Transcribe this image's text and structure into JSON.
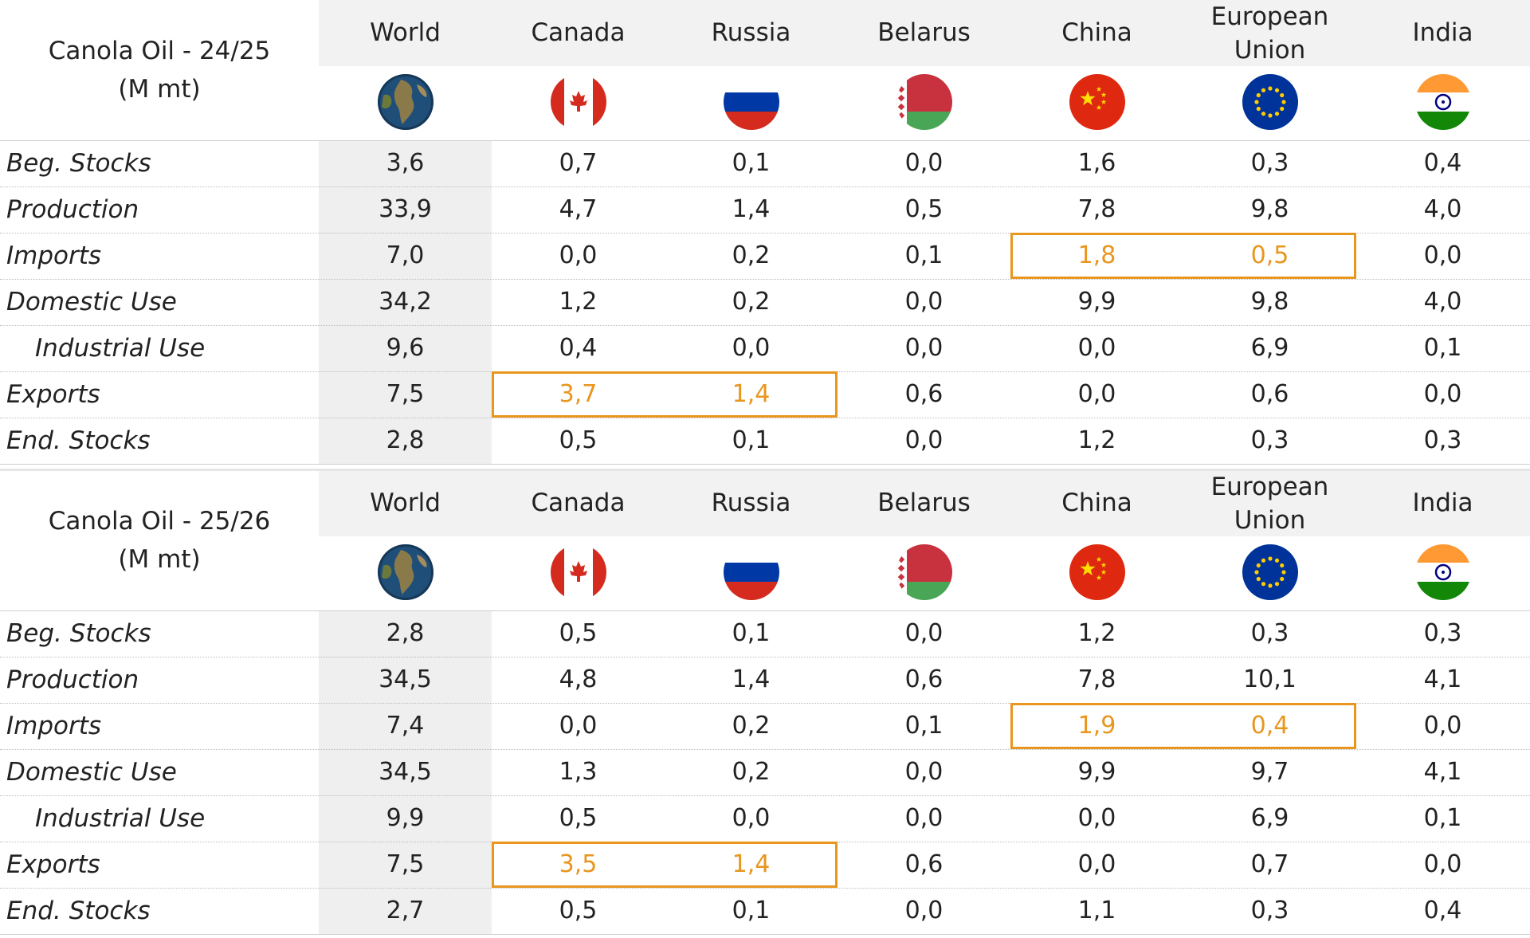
{
  "columns": [
    "World",
    "Canada",
    "Russia",
    "Belarus",
    "China",
    "European Union",
    "India"
  ],
  "flags": [
    "globe-icon",
    "canada-flag-icon",
    "russia-flag-icon",
    "belarus-flag-icon",
    "china-flag-icon",
    "eu-flag-icon",
    "india-flag-icon"
  ],
  "colors": {
    "highlight": "#e8961e",
    "header_bg": "#f2f2f2",
    "world_col_bg": "#efefef"
  },
  "tables": [
    {
      "title": "Canola Oil - 24/25",
      "unit": "(M mt)",
      "rows": [
        {
          "label": "Beg. Stocks",
          "values": [
            "3,6",
            "0,7",
            "0,1",
            "0,0",
            "1,6",
            "0,3",
            "0,4"
          ]
        },
        {
          "label": "Production",
          "values": [
            "33,9",
            "4,7",
            "1,4",
            "0,5",
            "7,8",
            "9,8",
            "4,0"
          ]
        },
        {
          "label": "Imports",
          "values": [
            "7,0",
            "0,0",
            "0,2",
            "0,1",
            "1,8",
            "0,5",
            "0,0"
          ]
        },
        {
          "label": "Domestic Use",
          "values": [
            "34,2",
            "1,2",
            "0,2",
            "0,0",
            "9,9",
            "9,8",
            "4,0"
          ]
        },
        {
          "label": "Industrial Use",
          "values": [
            "9,6",
            "0,4",
            "0,0",
            "0,0",
            "0,0",
            "6,9",
            "0,1"
          ]
        },
        {
          "label": "Exports",
          "values": [
            "7,5",
            "3,7",
            "1,4",
            "0,6",
            "0,0",
            "0,6",
            "0,0"
          ]
        },
        {
          "label": "End. Stocks",
          "values": [
            "2,8",
            "0,5",
            "0,1",
            "0,0",
            "1,2",
            "0,3",
            "0,3"
          ]
        }
      ]
    },
    {
      "title": "Canola Oil - 25/26",
      "unit": "(M mt)",
      "rows": [
        {
          "label": "Beg. Stocks",
          "values": [
            "2,8",
            "0,5",
            "0,1",
            "0,0",
            "1,2",
            "0,3",
            "0,3"
          ]
        },
        {
          "label": "Production",
          "values": [
            "34,5",
            "4,8",
            "1,4",
            "0,6",
            "7,8",
            "10,1",
            "4,1"
          ]
        },
        {
          "label": "Imports",
          "values": [
            "7,4",
            "0,0",
            "0,2",
            "0,1",
            "1,9",
            "0,4",
            "0,0"
          ]
        },
        {
          "label": "Domestic Use",
          "values": [
            "34,5",
            "1,3",
            "0,2",
            "0,0",
            "9,9",
            "9,7",
            "4,1"
          ]
        },
        {
          "label": "Industrial Use",
          "values": [
            "9,9",
            "0,5",
            "0,0",
            "0,0",
            "0,0",
            "6,9",
            "0,1"
          ]
        },
        {
          "label": "Exports",
          "values": [
            "7,5",
            "3,5",
            "1,4",
            "0,6",
            "0,0",
            "0,7",
            "0,0"
          ]
        },
        {
          "label": "End. Stocks",
          "values": [
            "2,7",
            "0,5",
            "0,1",
            "0,0",
            "1,1",
            "0,3",
            "0,4"
          ]
        }
      ]
    }
  ],
  "highlights": [
    {
      "row": "Imports",
      "columns": [
        "China",
        "European Union"
      ]
    },
    {
      "row": "Exports",
      "columns": [
        "Canada",
        "Russia"
      ]
    }
  ],
  "chart_data": {
    "type": "table",
    "columns": [
      "World",
      "Canada",
      "Russia",
      "Belarus",
      "China",
      "European Union",
      "India"
    ],
    "tables": [
      {
        "title": "Canola Oil - 24/25 (M mt)",
        "rows": {
          "Beg. Stocks": [
            3.6,
            0.7,
            0.1,
            0.0,
            1.6,
            0.3,
            0.4
          ],
          "Production": [
            33.9,
            4.7,
            1.4,
            0.5,
            7.8,
            9.8,
            4.0
          ],
          "Imports": [
            7.0,
            0.0,
            0.2,
            0.1,
            1.8,
            0.5,
            0.0
          ],
          "Domestic Use": [
            34.2,
            1.2,
            0.2,
            0.0,
            9.9,
            9.8,
            4.0
          ],
          "Industrial Use": [
            9.6,
            0.4,
            0.0,
            0.0,
            0.0,
            6.9,
            0.1
          ],
          "Exports": [
            7.5,
            3.7,
            1.4,
            0.6,
            0.0,
            0.6,
            0.0
          ],
          "End. Stocks": [
            2.8,
            0.5,
            0.1,
            0.0,
            1.2,
            0.3,
            0.3
          ]
        }
      },
      {
        "title": "Canola Oil - 25/26 (M mt)",
        "rows": {
          "Beg. Stocks": [
            2.8,
            0.5,
            0.1,
            0.0,
            1.2,
            0.3,
            0.3
          ],
          "Production": [
            34.5,
            4.8,
            1.4,
            0.6,
            7.8,
            10.1,
            4.1
          ],
          "Imports": [
            7.4,
            0.0,
            0.2,
            0.1,
            1.9,
            0.4,
            0.0
          ],
          "Domestic Use": [
            34.5,
            1.3,
            0.2,
            0.0,
            9.9,
            9.7,
            4.1
          ],
          "Industrial Use": [
            9.9,
            0.5,
            0.0,
            0.0,
            0.0,
            6.9,
            0.1
          ],
          "Exports": [
            7.5,
            3.5,
            1.4,
            0.6,
            0.0,
            0.7,
            0.0
          ],
          "End. Stocks": [
            2.7,
            0.5,
            0.1,
            0.0,
            1.1,
            0.3,
            0.4
          ]
        }
      }
    ]
  }
}
